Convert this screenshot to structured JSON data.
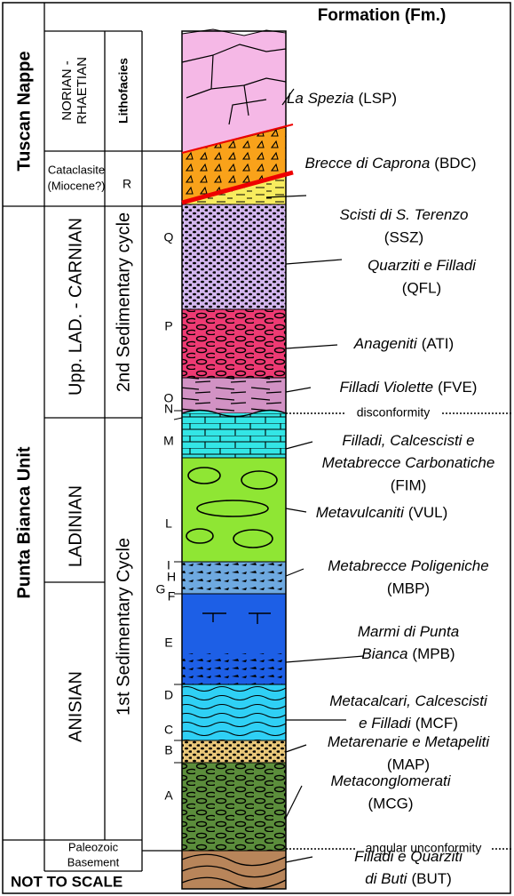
{
  "header": {
    "title": "Formation (Fm.)"
  },
  "units": [
    "Tuscan Nappe",
    "Punta Bianca Unit"
  ],
  "ages": [
    {
      "lines": [
        "NORIAN -",
        "RHAETIAN"
      ]
    },
    {
      "lines": [
        "Cataclasite",
        "(Miocene?)"
      ]
    },
    {
      "lines": [
        "Upp. LAD. - CARNIAN"
      ]
    },
    {
      "lines": [
        "LADINIAN"
      ]
    },
    {
      "lines": [
        "ANISIAN"
      ]
    },
    {
      "lines": [
        "Paleozoic",
        "Basement"
      ]
    }
  ],
  "lithofacies_header": "Lithofacies",
  "cycles": [
    "2nd Sedimentary cycle",
    "1st Sedimentary Cycle"
  ],
  "lithofacies": [
    "R",
    "Q",
    "P",
    "O",
    "N",
    "M",
    "L",
    "I",
    "H",
    "G",
    "F",
    "E",
    "D",
    "C",
    "B",
    "A"
  ],
  "formations": [
    {
      "name_lines": [
        "La Spezia"
      ],
      "abbr": "(LSP)"
    },
    {
      "name_lines": [
        "Brecce di Caprona"
      ],
      "abbr": "(BDC)"
    },
    {
      "name_lines": [
        "Scisti di S. Terenzo"
      ],
      "abbr": "(SSZ)"
    },
    {
      "name_lines": [
        "Quarziti e Filladi"
      ],
      "abbr": "(QFL)"
    },
    {
      "name_lines": [
        "Anageniti"
      ],
      "abbr": "(ATI)"
    },
    {
      "name_lines": [
        "Filladi Violette"
      ],
      "abbr": "(FVE)"
    },
    {
      "name_lines": [
        "Filladi, Calcescisti e",
        "Metabrecce Carbonatiche"
      ],
      "abbr": "(FIM)"
    },
    {
      "name_lines": [
        "Metavulcaniti"
      ],
      "abbr": "(VUL)"
    },
    {
      "name_lines": [
        "Metabrecce Poligeniche"
      ],
      "abbr": "(MBP)"
    },
    {
      "name_lines": [
        "Marmi di Punta",
        "Bianca"
      ],
      "abbr": "(MPB)"
    },
    {
      "name_lines": [
        "Metacalcari, Calcescisti",
        "e Filladi"
      ],
      "abbr": "(MCF)"
    },
    {
      "name_lines": [
        "Metarenarie e Metapeliti"
      ],
      "abbr": "(MAP)"
    },
    {
      "name_lines": [
        "Metaconglomerati"
      ],
      "abbr": "(MCG)"
    },
    {
      "name_lines": [
        "Filladi e Quarziti",
        "di Buti"
      ],
      "abbr": "(BUT)"
    }
  ],
  "contacts": [
    "disconformity",
    "angular unconformity"
  ],
  "footer": "NOT TO SCALE"
}
